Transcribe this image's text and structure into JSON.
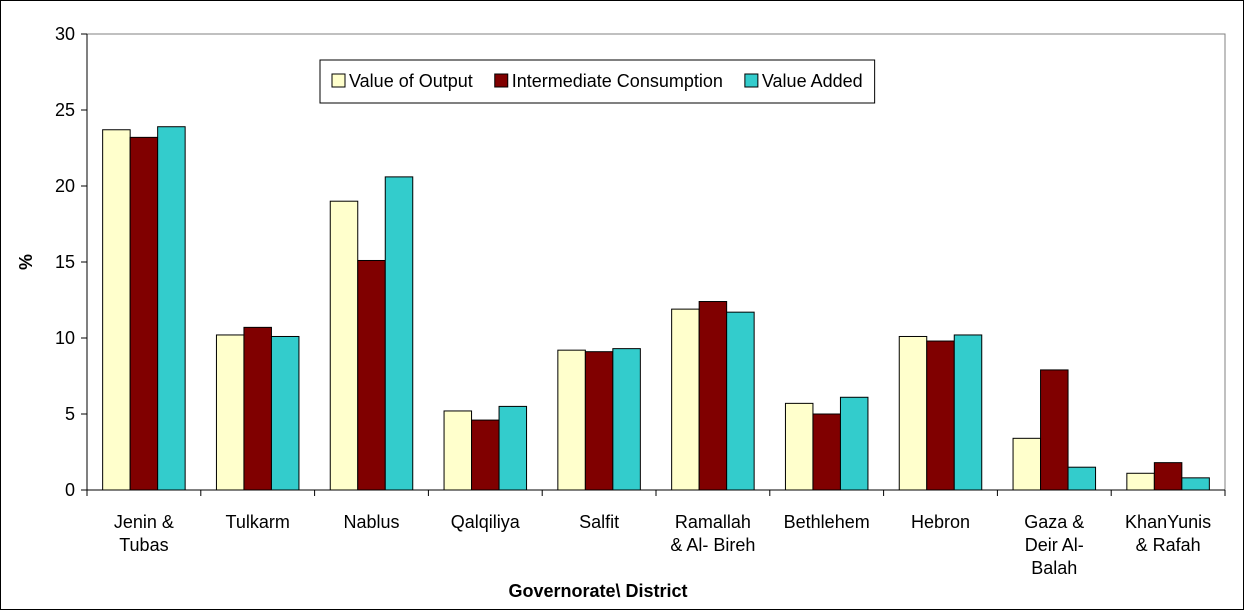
{
  "chart_data": {
    "type": "bar",
    "xlabel": "Governorate\\ District",
    "ylabel": "%",
    "categories": [
      "Jenin &\nTubas",
      "Tulkarm",
      "Nablus",
      "Qalqiliya",
      "Salfit",
      "Ramallah\n& Al- Bireh",
      "Bethlehem",
      "Hebron",
      "Gaza &\nDeir Al-\nBalah",
      "KhanYunis\n& Rafah"
    ],
    "series": [
      {
        "name": "Value of Output",
        "color": "#FFFFCC",
        "values": [
          23.7,
          10.2,
          19.0,
          5.2,
          9.2,
          11.9,
          5.7,
          10.1,
          3.4,
          1.1
        ]
      },
      {
        "name": "Intermediate Consumption",
        "color": "#800000",
        "values": [
          23.2,
          10.7,
          15.1,
          4.6,
          9.1,
          12.4,
          5.0,
          9.8,
          7.9,
          1.8
        ]
      },
      {
        "name": "Value Added",
        "color": "#33CCCC",
        "values": [
          23.9,
          10.1,
          20.6,
          5.5,
          9.3,
          11.7,
          6.1,
          10.2,
          1.5,
          0.8
        ]
      }
    ],
    "ylim": [
      0,
      30
    ],
    "yticks": [
      0,
      5,
      10,
      15,
      20,
      25,
      30
    ],
    "legend": "top"
  }
}
